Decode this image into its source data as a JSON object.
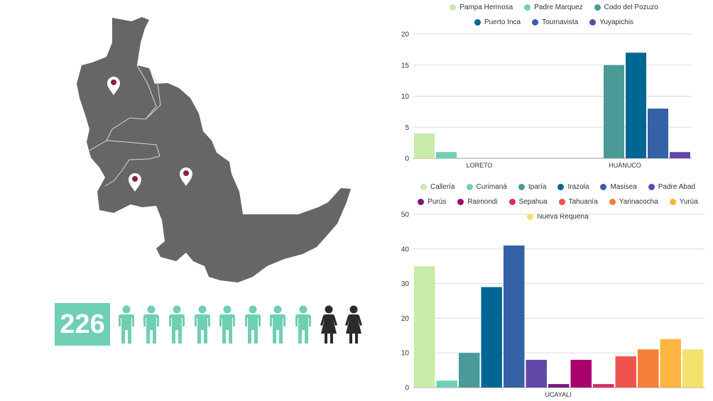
{
  "infographic": {
    "count": "226",
    "people": [
      {
        "gender": "man",
        "color": "#6fcfb2"
      },
      {
        "gender": "man",
        "color": "#6fcfb2"
      },
      {
        "gender": "man",
        "color": "#6fcfb2"
      },
      {
        "gender": "man",
        "color": "#6fcfb2"
      },
      {
        "gender": "man",
        "color": "#6fcfb2"
      },
      {
        "gender": "man",
        "color": "#6fcfb2"
      },
      {
        "gender": "man",
        "color": "#6fcfb2"
      },
      {
        "gender": "man",
        "color": "#6fcfb2"
      },
      {
        "gender": "woman",
        "color": "#2b2b2b"
      },
      {
        "gender": "woman",
        "color": "#2b2b2b"
      }
    ],
    "map_color": "#666666",
    "pin_color": "#8b2040"
  },
  "chart_data": [
    {
      "type": "bar",
      "categories": [
        "LORETO",
        "HUÁNUCO"
      ],
      "series": [
        {
          "name": "Pampa Hermosa",
          "color": "#c9ebaa",
          "values": [
            4,
            0
          ]
        },
        {
          "name": "Padre Marquez",
          "color": "#6fcfb2",
          "values": [
            1,
            0
          ]
        },
        {
          "name": "Codo del Pozuzo",
          "color": "#4a9a98",
          "values": [
            0,
            15
          ]
        },
        {
          "name": "Puerto Inca",
          "color": "#006794",
          "values": [
            0,
            17
          ]
        },
        {
          "name": "Tournavista",
          "color": "#3561a7",
          "values": [
            0,
            8
          ]
        },
        {
          "name": "Yuyapichis",
          "color": "#6348a8",
          "values": [
            0,
            1
          ]
        }
      ],
      "ylim": [
        0,
        20
      ],
      "yticks": [
        0,
        5,
        10,
        15,
        20
      ],
      "grid": true,
      "legend": "top"
    },
    {
      "type": "bar",
      "categories": [
        "UCAYALI"
      ],
      "series": [
        {
          "name": "Callería",
          "color": "#c9ebaa",
          "values": [
            35
          ]
        },
        {
          "name": "Curimaná",
          "color": "#6fcfb2",
          "values": [
            2
          ]
        },
        {
          "name": "Iparía",
          "color": "#4a9a98",
          "values": [
            10
          ]
        },
        {
          "name": "Irazola",
          "color": "#006794",
          "values": [
            29
          ]
        },
        {
          "name": "Masisea",
          "color": "#3561a7",
          "values": [
            41
          ]
        },
        {
          "name": "Padre Abad",
          "color": "#6348a8",
          "values": [
            8
          ]
        },
        {
          "name": "Purús",
          "color": "#741c7c",
          "values": [
            1
          ]
        },
        {
          "name": "Raimondi",
          "color": "#a8006c",
          "values": [
            8
          ]
        },
        {
          "name": "Sepahua",
          "color": "#d1335d",
          "values": [
            1
          ]
        },
        {
          "name": "Tahuanía",
          "color": "#ef5350",
          "values": [
            9
          ]
        },
        {
          "name": "Yarinacocha",
          "color": "#f57f36",
          "values": [
            11
          ]
        },
        {
          "name": "Yurúa",
          "color": "#fbb540",
          "values": [
            14
          ]
        },
        {
          "name": "Nueva Requena",
          "color": "#f2e26c",
          "values": [
            11
          ]
        }
      ],
      "ylim": [
        0,
        50
      ],
      "yticks": [
        0,
        10,
        20,
        30,
        40,
        50
      ],
      "grid": true,
      "legend": "top"
    }
  ]
}
